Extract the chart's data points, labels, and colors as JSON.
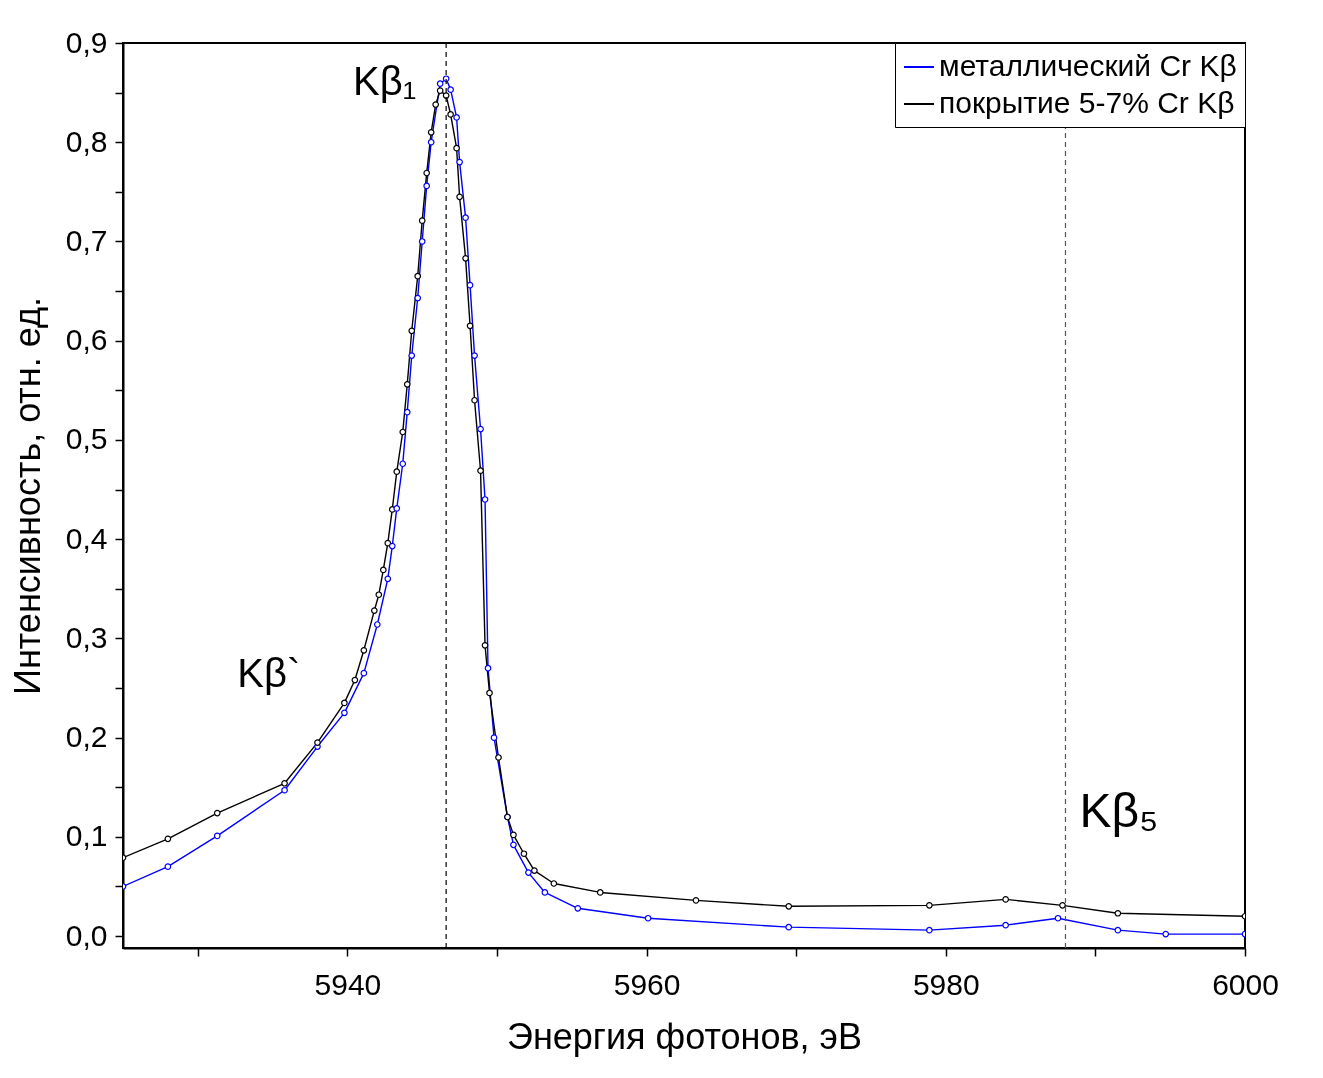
{
  "chart_data": {
    "type": "line",
    "xlabel": "Энергия фотонов, эВ",
    "ylabel": "Интенсивность, отн. ед.",
    "xlim": [
      5925,
      6000
    ],
    "ylim": [
      -0.012,
      0.9
    ],
    "xticks": [
      {
        "value": 5930,
        "label": null
      },
      5940,
      {
        "value": 5950,
        "label": null
      },
      5960,
      {
        "value": 5970,
        "label": null
      },
      5980,
      {
        "value": 5990,
        "label": null
      },
      6000
    ],
    "yticks": [
      {
        "value": 0,
        "label": "0,0"
      },
      {
        "value": 0.05,
        "label": null
      },
      {
        "value": 0.1,
        "label": "0,1"
      },
      {
        "value": 0.15,
        "label": null
      },
      {
        "value": 0.2,
        "label": "0,2"
      },
      {
        "value": 0.25,
        "label": null
      },
      {
        "value": 0.3,
        "label": "0,3"
      },
      {
        "value": 0.35,
        "label": null
      },
      {
        "value": 0.4,
        "label": "0,4"
      },
      {
        "value": 0.45,
        "label": null
      },
      {
        "value": 0.5,
        "label": "0,5"
      },
      {
        "value": 0.55,
        "label": null
      },
      {
        "value": 0.6,
        "label": "0,6"
      },
      {
        "value": 0.65,
        "label": null
      },
      {
        "value": 0.7,
        "label": "0,7"
      },
      {
        "value": 0.75,
        "label": null
      },
      {
        "value": 0.8,
        "label": "0,8"
      },
      {
        "value": 0.85,
        "label": null
      },
      {
        "value": 0.9,
        "label": "0,9"
      }
    ],
    "grid": false,
    "legend": "top right",
    "marker": "circle",
    "line_style": "solid",
    "series": [
      {
        "name": "металлический Cr Kβ",
        "color": "#0000ff",
        "x": [
          5925,
          5928,
          5931.3,
          5935.8,
          5938,
          5939.8,
          5941.1,
          5942,
          5942.7,
          5943,
          5943.3,
          5943.7,
          5944,
          5944.3,
          5944.7,
          5945,
          5945.3,
          5945.6,
          5946.2,
          5946.6,
          5946.9,
          5947.3,
          5947.5,
          5947.9,
          5948.2,
          5948.5,
          5948.9,
          5949.2,
          5949.4,
          5949.8,
          5950.7,
          5951.1,
          5952.1,
          5953.2,
          5955.4,
          5960.1,
          5969.5,
          5978.9,
          5984,
          5987.5,
          5991.5,
          5994.7,
          6000
        ],
        "values": [
          0.05,
          0.07,
          0.101,
          0.147,
          0.191,
          0.225,
          0.265,
          0.314,
          0.36,
          0.393,
          0.431,
          0.476,
          0.528,
          0.585,
          0.643,
          0.7,
          0.756,
          0.8,
          0.859,
          0.864,
          0.853,
          0.825,
          0.78,
          0.724,
          0.656,
          0.585,
          0.511,
          0.44,
          0.27,
          0.2,
          0.12,
          0.092,
          0.064,
          0.044,
          0.028,
          0.018,
          0.009,
          0.006,
          0.011,
          0.018,
          0.006,
          0.002,
          0.002
        ]
      },
      {
        "name": "покрытие 5-7% Cr Kβ",
        "color": "#000000",
        "x": [
          5925,
          5928,
          5931.3,
          5935.8,
          5938,
          5939.8,
          5940.5,
          5941.1,
          5941.8,
          5942.1,
          5942.4,
          5942.7,
          5943,
          5943.3,
          5943.7,
          5944,
          5944.3,
          5944.7,
          5945,
          5945.3,
          5945.6,
          5945.9,
          5946.2,
          5946.6,
          5946.9,
          5947.3,
          5947.5,
          5947.9,
          5948.2,
          5948.5,
          5948.9,
          5949.2,
          5949.5,
          5950.1,
          5950.7,
          5951.1,
          5951.8,
          5952.5,
          5953.8,
          5956.9,
          5963.3,
          5969.5,
          5978.9,
          5984,
          5987.8,
          5991.5,
          6000
        ],
        "values": [
          0.079,
          0.098,
          0.124,
          0.154,
          0.195,
          0.235,
          0.258,
          0.288,
          0.328,
          0.344,
          0.369,
          0.396,
          0.43,
          0.468,
          0.508,
          0.556,
          0.61,
          0.665,
          0.721,
          0.769,
          0.81,
          0.838,
          0.852,
          0.847,
          0.828,
          0.794,
          0.745,
          0.683,
          0.615,
          0.54,
          0.469,
          0.293,
          0.245,
          0.18,
          0.12,
          0.102,
          0.083,
          0.066,
          0.053,
          0.044,
          0.036,
          0.03,
          0.031,
          0.037,
          0.031,
          0.023,
          0.02
        ]
      }
    ],
    "ref_lines": [
      {
        "axis": "x",
        "value": 5946.6,
        "line_style": "dashed",
        "color": "#000000"
      },
      {
        "axis": "x",
        "value": 5988,
        "line_style": "dashed",
        "color": "#555555"
      }
    ],
    "annotations": [
      {
        "text": "Kβ₁",
        "x": 5946.6,
        "y": 0.84
      },
      "Kβ`",
      {
        "text": "Kβ₅",
        "x": 5988,
        "y": 0.1
      }
    ]
  }
}
